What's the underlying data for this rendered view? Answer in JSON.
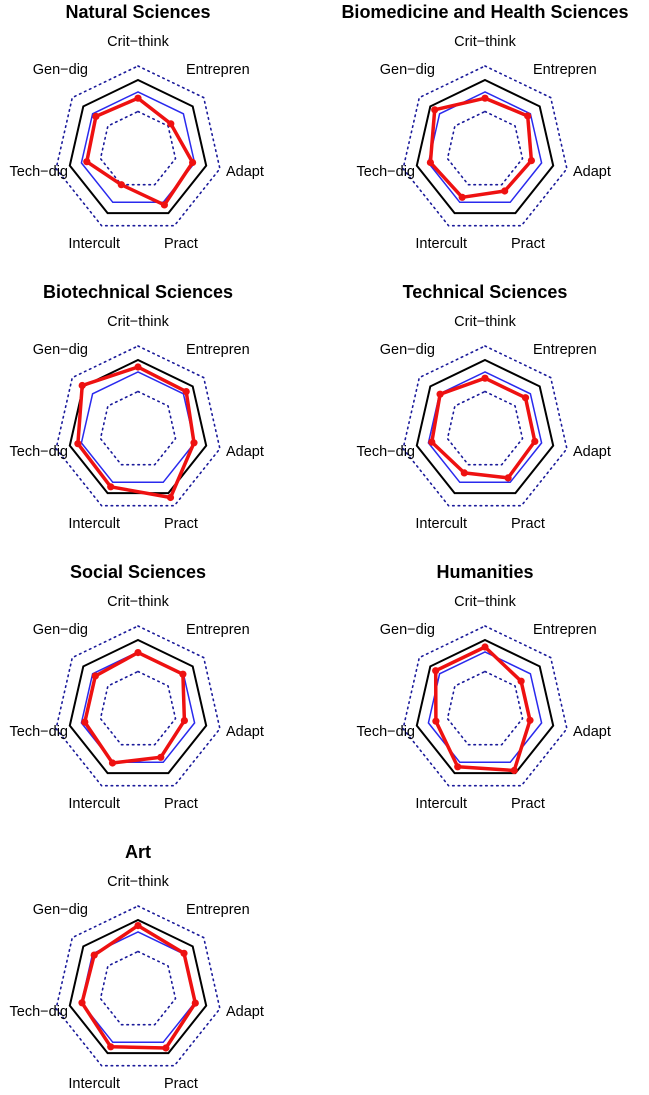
{
  "chart_data": [
    {
      "type": "radar",
      "title": "Natural Sciences",
      "axes": [
        "Crit−think",
        "Entrepren",
        "Adapt",
        "Pract",
        "Intercult",
        "Tech−dig",
        "Gen−dig"
      ],
      "rlim": [
        0,
        1
      ],
      "series": [
        {
          "name": "observed",
          "color": "#ee1111",
          "values": [
            0.74,
            0.6,
            0.8,
            0.87,
            0.55,
            0.75,
            0.77
          ]
        }
      ]
    },
    {
      "type": "radar",
      "title": "Biomedicine and Health Sciences",
      "axes": [
        "Crit−think",
        "Entrepren",
        "Adapt",
        "Pract",
        "Intercult",
        "Tech−dig",
        "Gen−dig"
      ],
      "rlim": [
        0,
        1
      ],
      "series": [
        {
          "name": "observed",
          "color": "#ee1111",
          "values": [
            0.74,
            0.78,
            0.68,
            0.65,
            0.75,
            0.8,
            0.92
          ]
        }
      ]
    },
    {
      "type": "radar",
      "title": "Biotechnical Sciences",
      "axes": [
        "Crit−think",
        "Entrepren",
        "Adapt",
        "Pract",
        "Intercult",
        "Tech−dig",
        "Gen−dig"
      ],
      "rlim": [
        0,
        1
      ],
      "series": [
        {
          "name": "observed",
          "color": "#ee1111",
          "values": [
            0.9,
            0.88,
            0.82,
            1.07,
            0.9,
            0.88,
            1.02
          ]
        }
      ]
    },
    {
      "type": "radar",
      "title": "Technical Sciences",
      "axes": [
        "Crit−think",
        "Entrepren",
        "Adapt",
        "Pract",
        "Intercult",
        "Tech−dig",
        "Gen−dig"
      ],
      "rlim": [
        0,
        1
      ],
      "series": [
        {
          "name": "observed",
          "color": "#ee1111",
          "values": [
            0.74,
            0.74,
            0.73,
            0.76,
            0.68,
            0.78,
            0.82
          ]
        }
      ]
    },
    {
      "type": "radar",
      "title": "Social Sciences",
      "axes": [
        "Crit−think",
        "Entrepren",
        "Adapt",
        "Pract",
        "Intercult",
        "Tech−dig",
        "Gen−dig"
      ],
      "rlim": [
        0,
        1
      ],
      "series": [
        {
          "name": "observed",
          "color": "#ee1111",
          "values": [
            0.82,
            0.82,
            0.68,
            0.75,
            0.84,
            0.78,
            0.78
          ]
        }
      ]
    },
    {
      "type": "radar",
      "title": "Humanities",
      "axes": [
        "Crit−think",
        "Entrepren",
        "Adapt",
        "Pract",
        "Intercult",
        "Tech−dig",
        "Gen−dig"
      ],
      "rlim": [
        0,
        1
      ],
      "series": [
        {
          "name": "observed",
          "color": "#ee1111",
          "values": [
            0.9,
            0.66,
            0.66,
            0.96,
            0.9,
            0.72,
            0.9
          ]
        }
      ]
    },
    {
      "type": "radar",
      "title": "Art",
      "axes": [
        "Crit−think",
        "Entrepren",
        "Adapt",
        "Pract",
        "Intercult",
        "Tech−dig",
        "Gen−dig"
      ],
      "rlim": [
        0,
        1
      ],
      "series": [
        {
          "name": "observed",
          "color": "#ee1111",
          "values": [
            0.92,
            0.84,
            0.84,
            0.92,
            0.9,
            0.82,
            0.8
          ]
        }
      ]
    }
  ],
  "reference_polygons": [
    {
      "name": "inner-dotted",
      "style": "dotted",
      "color": "#1a1a9a",
      "level": 0.55
    },
    {
      "name": "blue-ring",
      "style": "solid",
      "color": "#2a2aee",
      "level": 0.83
    },
    {
      "name": "black-ring",
      "style": "solid",
      "color": "#000000",
      "level": 1.0
    },
    {
      "name": "outer-dotted",
      "style": "dotted",
      "color": "#1a1a9a",
      "level": 1.2
    }
  ]
}
